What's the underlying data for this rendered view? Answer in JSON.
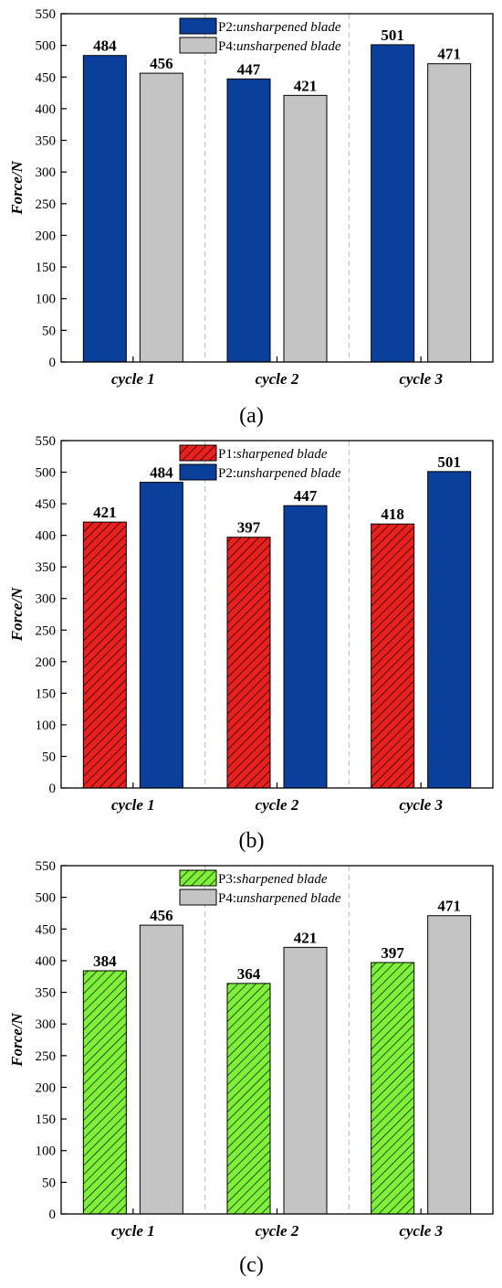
{
  "chart_data": [
    {
      "type": "bar",
      "panel_label": "(a)",
      "categories": [
        "cycle 1",
        "cycle 2",
        "cycle 3"
      ],
      "ylabel": "Force/N",
      "ylim": [
        0,
        550
      ],
      "ytick_step": 50,
      "grid": false,
      "legend_position": "top-center",
      "series": [
        {
          "name": "unsharpened blade",
          "prefix": "P2:",
          "values": [
            484,
            447,
            501
          ],
          "color": "#0a3f9c",
          "hatch": false
        },
        {
          "name": "unsharpened blade",
          "prefix": "P4:",
          "values": [
            456,
            421,
            471
          ],
          "color": "#c4c4c4",
          "hatch": false
        }
      ]
    },
    {
      "type": "bar",
      "panel_label": "(b)",
      "categories": [
        "cycle 1",
        "cycle 2",
        "cycle 3"
      ],
      "ylabel": "Force/N",
      "ylim": [
        0,
        550
      ],
      "ytick_step": 50,
      "grid": false,
      "legend_position": "top-center",
      "series": [
        {
          "name": "sharpened blade",
          "prefix": "P1:",
          "values": [
            421,
            397,
            418
          ],
          "color": "#e8201e",
          "hatch": true
        },
        {
          "name": "unsharpened blade",
          "prefix": "P2:",
          "values": [
            484,
            447,
            501
          ],
          "color": "#0a3f9c",
          "hatch": false
        }
      ]
    },
    {
      "type": "bar",
      "panel_label": "(c)",
      "categories": [
        "cycle 1",
        "cycle 2",
        "cycle 3"
      ],
      "ylabel": "Force/N",
      "ylim": [
        0,
        550
      ],
      "ytick_step": 50,
      "grid": false,
      "legend_position": "top-center",
      "series": [
        {
          "name": "sharpened blade",
          "prefix": "P3:",
          "values": [
            384,
            364,
            397
          ],
          "color": "#7ef03a",
          "hatch": true
        },
        {
          "name": "unsharpened blade",
          "prefix": "P4:",
          "values": [
            456,
            421,
            471
          ],
          "color": "#c4c4c4",
          "hatch": false
        }
      ]
    }
  ]
}
